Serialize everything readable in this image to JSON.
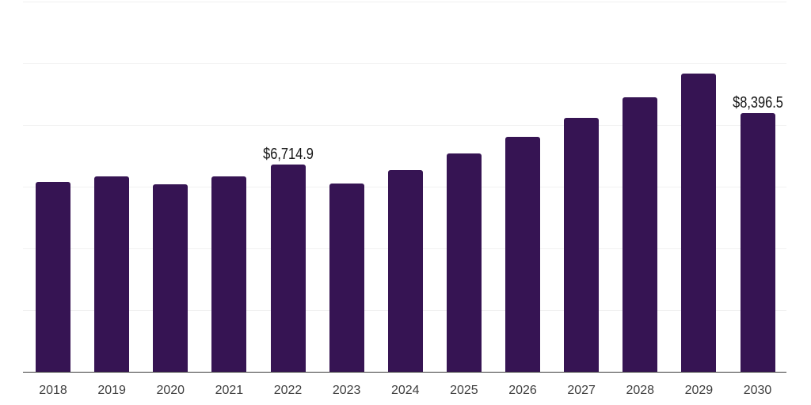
{
  "chart_data": {
    "type": "bar",
    "title": "",
    "xlabel": "",
    "ylabel": "",
    "categories": [
      "2018",
      "2019",
      "2020",
      "2021",
      "2022",
      "2023",
      "2024",
      "2025",
      "2026",
      "2027",
      "2028",
      "2029",
      "2030"
    ],
    "values": [
      6155,
      6335,
      6065,
      6345,
      6714.9,
      6105,
      6550,
      7075,
      7610,
      8230,
      8910,
      9665,
      8396.5
    ],
    "annotations": [
      {
        "category": "2022",
        "text": "$6,714.9"
      },
      {
        "category": "2030",
        "text": "$8,396.5"
      }
    ],
    "ylim": [
      0,
      12000
    ],
    "gridline_step": 2000,
    "grid": true,
    "legend": "none",
    "y_axis_labels_visible": false,
    "bar_color": "#361453"
  },
  "colors": {
    "background": "#ffffff",
    "bar": "#361453",
    "gridline": "#f1f1f1",
    "axis_line": "#3b3b3b",
    "tick_label": "#3e3e3e",
    "annotation_label": "#151515"
  }
}
